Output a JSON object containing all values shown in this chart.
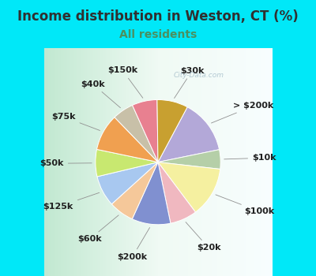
{
  "title": "Income distribution in Weston, CT (%)",
  "subtitle": "All residents",
  "watermark": "City-Data.com",
  "slices": [
    {
      "label": "> $200k",
      "value": 14.0,
      "color": "#b3a8d8"
    },
    {
      "label": "$10k",
      "value": 5.0,
      "color": "#b5cfa8"
    },
    {
      "label": "$100k",
      "value": 13.0,
      "color": "#f5f0a0"
    },
    {
      "label": "$20k",
      "value": 7.0,
      "color": "#f0b8c0"
    },
    {
      "label": "$200k",
      "value": 10.0,
      "color": "#8090d0"
    },
    {
      "label": "$60k",
      "value": 6.5,
      "color": "#f5c89a"
    },
    {
      "label": "$125k",
      "value": 8.0,
      "color": "#a8c8f0"
    },
    {
      "label": "$50k",
      "value": 7.0,
      "color": "#c8e870"
    },
    {
      "label": "$75k",
      "value": 9.5,
      "color": "#f0a050"
    },
    {
      "label": "$40k",
      "value": 5.5,
      "color": "#c8c0a8"
    },
    {
      "label": "$150k",
      "value": 6.5,
      "color": "#e88090"
    },
    {
      "label": "$30k",
      "value": 8.0,
      "color": "#c8a030"
    }
  ],
  "bg_color_cyan": "#00e8f8",
  "bg_color_chart_light": "#e8f8f0",
  "bg_color_chart_dark": "#c0e8d0",
  "title_fontsize": 12,
  "subtitle_fontsize": 10,
  "subtitle_color": "#4a9060",
  "label_fontsize": 8,
  "title_color": "#303030",
  "watermark_color": "#a8c0cc"
}
